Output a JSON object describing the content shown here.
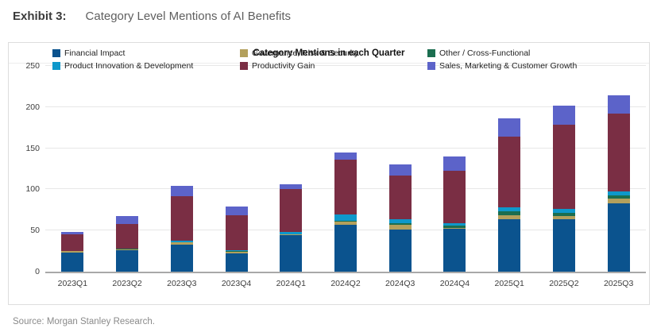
{
  "page": {
    "exhibit_label": "Exhibit 3:",
    "exhibit_title": "Category Level Mentions of AI Benefits",
    "source": "Source: Morgan Stanley Research."
  },
  "chart_data": {
    "type": "bar",
    "stacked": true,
    "title": "Category Mentions in each Quarter",
    "xlabel": "",
    "ylabel": "",
    "ylim": [
      0,
      250
    ],
    "yticks": [
      0,
      50,
      100,
      150,
      200,
      250
    ],
    "grid": true,
    "legend_position": "top-inside",
    "categories": [
      "2023Q1",
      "2023Q2",
      "2023Q3",
      "2023Q4",
      "2024Q1",
      "2024Q2",
      "2024Q3",
      "2024Q4",
      "2025Q1",
      "2025Q2",
      "2025Q3"
    ],
    "series": [
      {
        "name": "Financial Impact",
        "color": "#0b538e",
        "values": [
          23,
          26,
          33,
          22,
          44,
          57,
          51,
          52,
          64,
          64,
          83
        ]
      },
      {
        "name": "Governance, Risk & Security",
        "color": "#b3a05c",
        "values": [
          2,
          1,
          3,
          2,
          1,
          4,
          6,
          1,
          5,
          4,
          6
        ]
      },
      {
        "name": "Other / Cross-Functional",
        "color": "#1b6e50",
        "values": [
          0,
          1,
          0,
          1,
          0,
          1,
          2,
          3,
          4,
          3,
          4
        ]
      },
      {
        "name": "Product Innovation & Development",
        "color": "#0e98cb",
        "values": [
          0,
          0,
          2,
          1,
          3,
          8,
          5,
          3,
          5,
          5,
          5
        ]
      },
      {
        "name": "Productivity Gain",
        "color": "#7a2e44",
        "values": [
          20,
          30,
          54,
          43,
          52,
          66,
          53,
          64,
          86,
          103,
          94
        ]
      },
      {
        "name": "Sales, Marketing & Customer Growth",
        "color": "#5c63c9",
        "values": [
          3,
          10,
          12,
          10,
          6,
          9,
          13,
          17,
          22,
          23,
          22
        ]
      }
    ],
    "totals": [
      48,
      68,
      104,
      79,
      106,
      145,
      130,
      140,
      186,
      202,
      214
    ]
  }
}
